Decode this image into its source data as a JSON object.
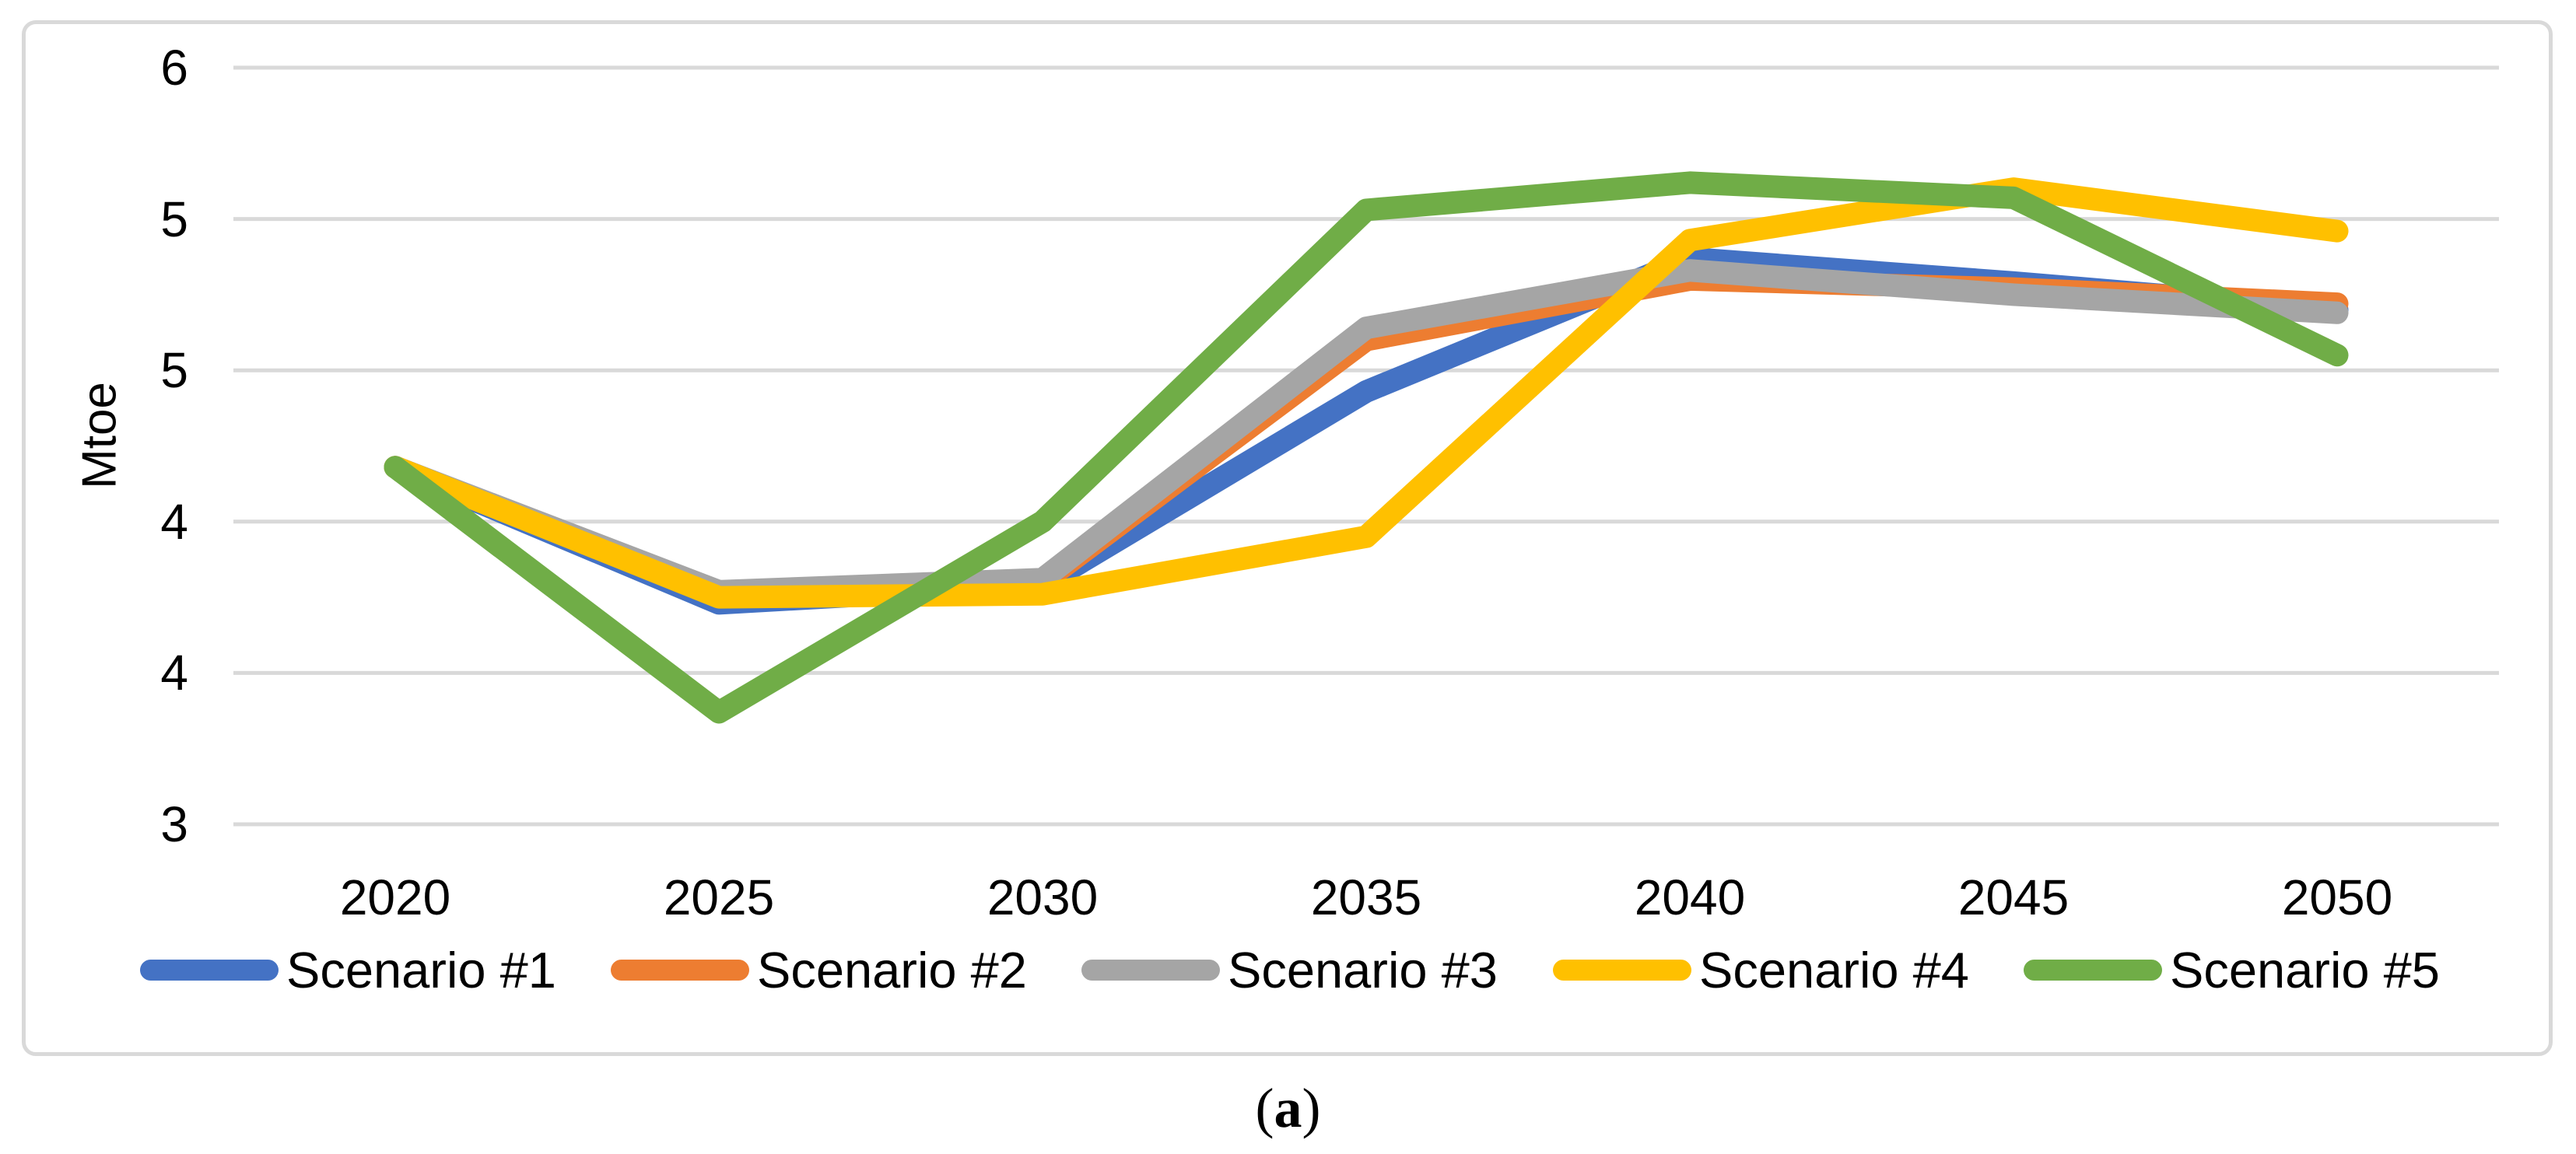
{
  "chart_data": {
    "type": "line",
    "title": "",
    "ylabel": "Mtoe",
    "xlabel": "",
    "categories": [
      "2020",
      "2025",
      "2030",
      "2035",
      "2040",
      "2045",
      "2050"
    ],
    "series": [
      {
        "name": "Scenario #1",
        "color": "#4472C4",
        "values": [
          4.18,
          3.73,
          3.79,
          4.43,
          4.87,
          4.79,
          4.7
        ]
      },
      {
        "name": "Scenario #2",
        "color": "#ED7D31",
        "values": [
          4.18,
          3.76,
          3.8,
          4.6,
          4.8,
          4.77,
          4.72
        ]
      },
      {
        "name": "Scenario #3",
        "color": "#A5A5A5",
        "values": [
          4.18,
          3.77,
          3.81,
          4.64,
          4.83,
          4.75,
          4.69
        ]
      },
      {
        "name": "Scenario #4",
        "color": "#FFC000",
        "values": [
          4.18,
          3.75,
          3.76,
          3.95,
          4.93,
          5.1,
          4.96
        ]
      },
      {
        "name": "Scenario #5",
        "color": "#70AD47",
        "values": [
          4.18,
          3.37,
          4.0,
          5.03,
          5.12,
          5.07,
          4.55
        ]
      }
    ],
    "ylim": [
      3.0,
      5.5
    ],
    "ytick_step": 0.5,
    "yticks": [
      {
        "value": 5.5,
        "label": "6"
      },
      {
        "value": 5.0,
        "label": "5"
      },
      {
        "value": 4.5,
        "label": "5"
      },
      {
        "value": 4.0,
        "label": "4"
      },
      {
        "value": 3.5,
        "label": "4"
      },
      {
        "value": 3.0,
        "label": "3"
      }
    ],
    "grid": true,
    "gridline_color": "#D9D9D9",
    "border_color": "#D9D9D9",
    "legend_position": "bottom"
  },
  "caption": {
    "open": "(",
    "letter": "a",
    "close": ")"
  }
}
